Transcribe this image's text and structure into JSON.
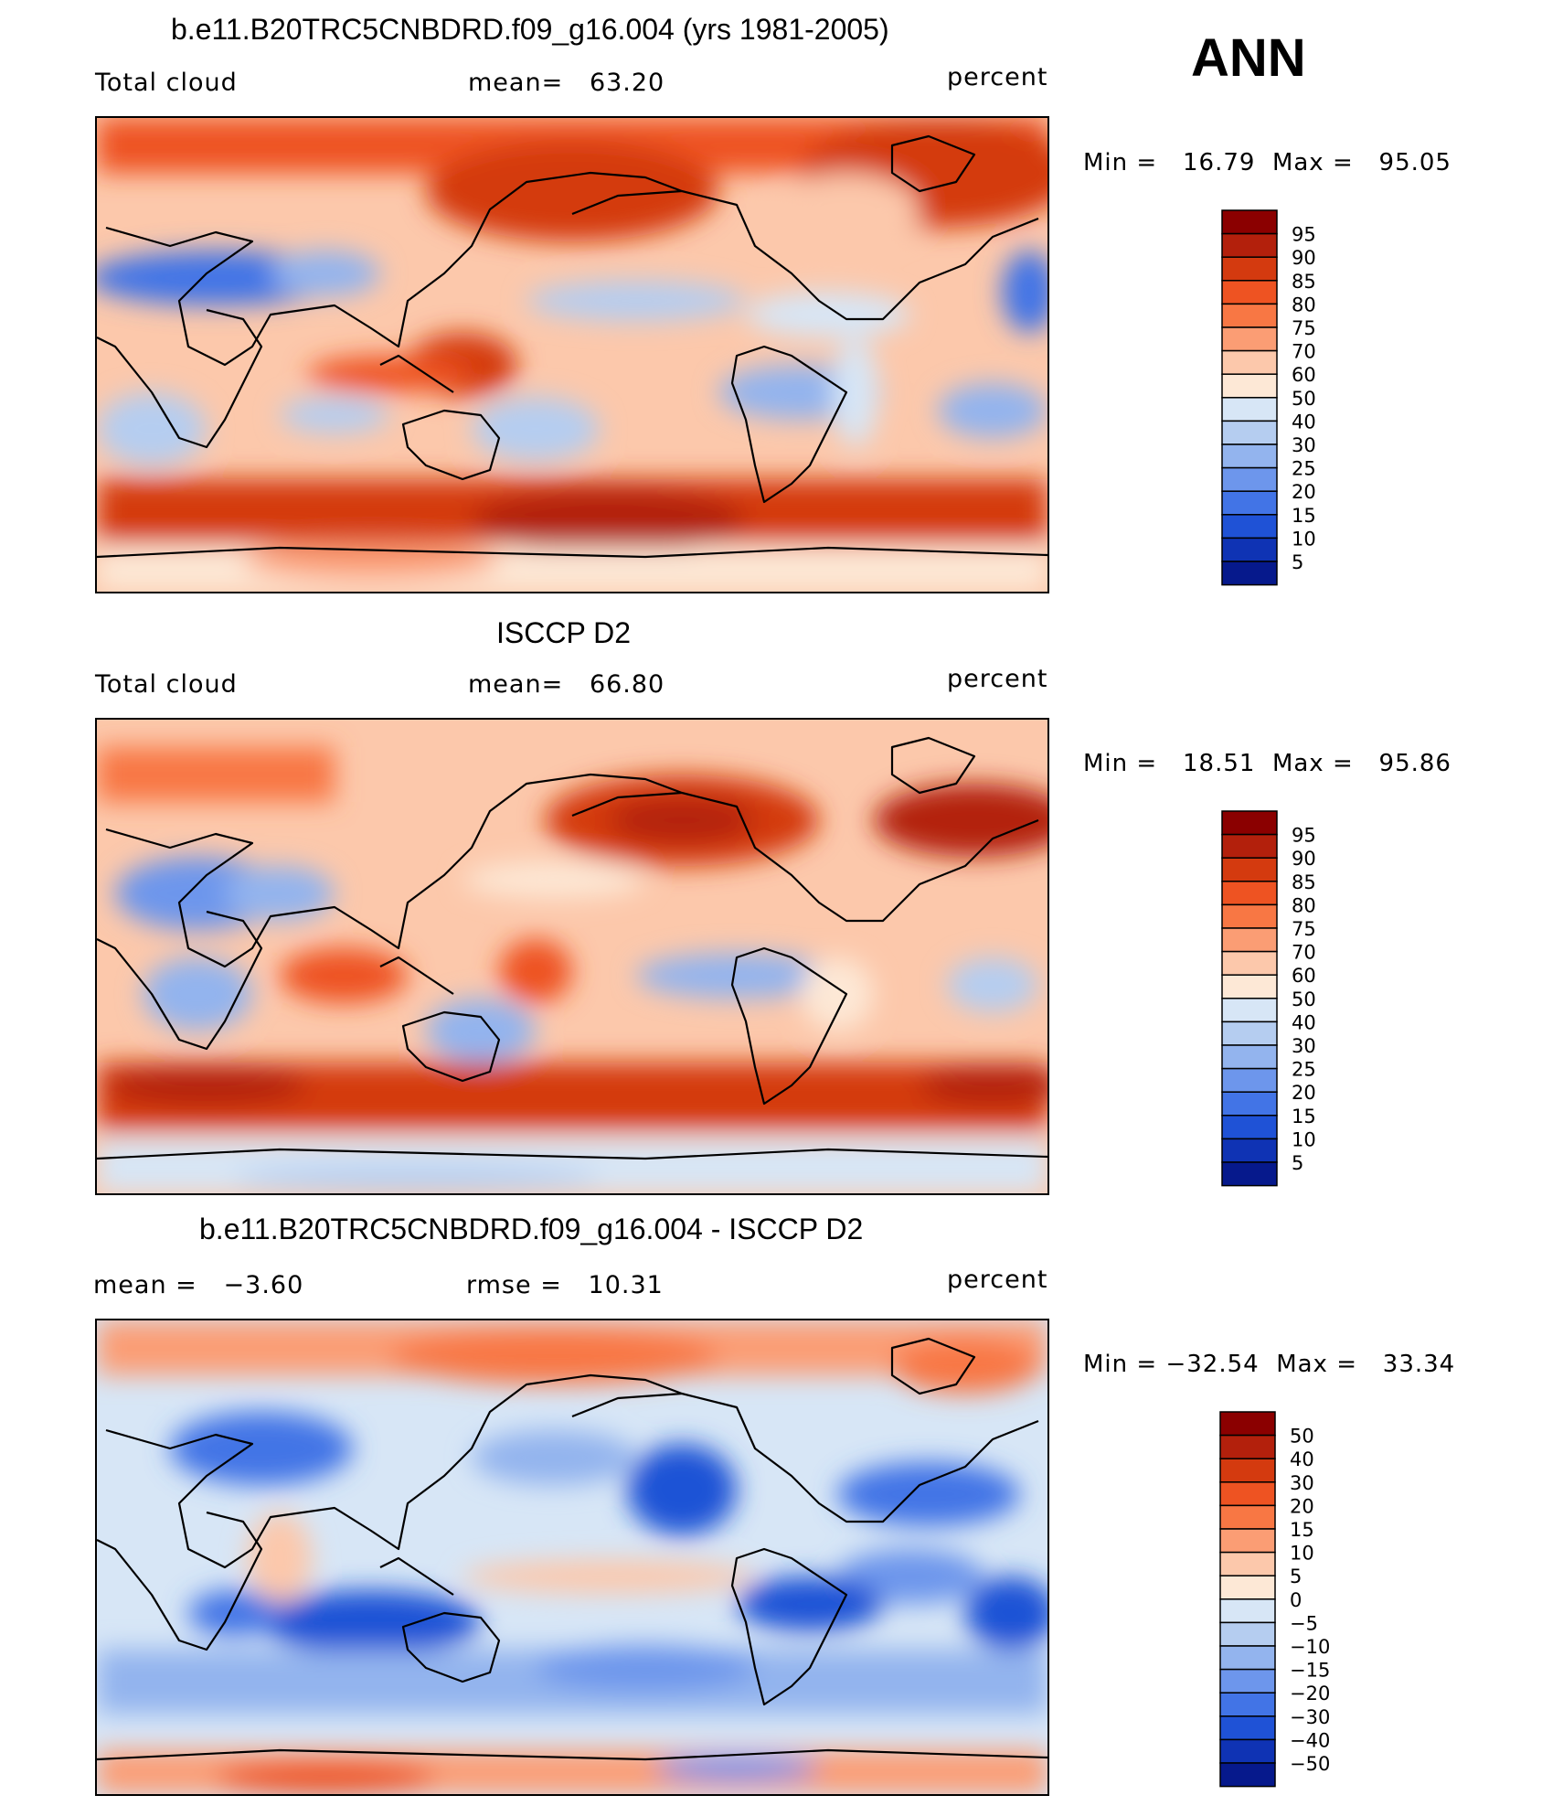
{
  "season": "ANN",
  "panels": [
    {
      "id": "model",
      "title": "b.e11.B20TRC5CNBDRD.f09_g16.004 (yrs 1981-2005)",
      "left_label": "Total cloud",
      "center_label": "mean=   63.20",
      "right_label": "percent",
      "min_max": "Min =   16.79  Max =   95.05",
      "colorbar_levels": [
        "95",
        "90",
        "85",
        "80",
        "75",
        "70",
        "60",
        "50",
        "40",
        "30",
        "25",
        "20",
        "15",
        "10",
        "5"
      ]
    },
    {
      "id": "obs",
      "title": "ISCCP D2",
      "left_label": "Total cloud",
      "center_label": "mean=   66.80",
      "right_label": "percent",
      "min_max": "Min =   18.51  Max =   95.86",
      "colorbar_levels": [
        "95",
        "90",
        "85",
        "80",
        "75",
        "70",
        "60",
        "50",
        "40",
        "30",
        "25",
        "20",
        "15",
        "10",
        "5"
      ]
    },
    {
      "id": "diff",
      "title": "b.e11.B20TRC5CNBDRD.f09_g16.004 - ISCCP D2",
      "left_label": "mean =   −3.60",
      "center_label": "rmse =   10.31",
      "right_label": "percent",
      "min_max": "Min = −32.54  Max =   33.34",
      "colorbar_levels": [
        "50",
        "40",
        "30",
        "20",
        "15",
        "10",
        "5",
        "0",
        "−5",
        "−10",
        "−15",
        "−20",
        "−30",
        "−40",
        "−50"
      ]
    }
  ],
  "colorbar_colors": [
    "#8b0000",
    "#b3200c",
    "#d43a0f",
    "#ee5322",
    "#f87744",
    "#fb9d74",
    "#fcc8ab",
    "#fde8d6",
    "#d7e6f6",
    "#b5cdf0",
    "#93b4ee",
    "#6d96ec",
    "#4274e6",
    "#1f52d6",
    "#0f33b4",
    "#06198c"
  ],
  "chart_data": [
    {
      "type": "heatmap",
      "title": "b.e11.B20TRC5CNBDRD.f09_g16.004 (yrs 1981-2005)",
      "variable": "Total cloud",
      "units": "percent",
      "mean": 63.2,
      "min": 16.79,
      "max": 95.05,
      "contour_levels": [
        5,
        10,
        15,
        20,
        25,
        30,
        40,
        50,
        60,
        70,
        75,
        80,
        85,
        90,
        95
      ]
    },
    {
      "type": "heatmap",
      "title": "ISCCP D2",
      "variable": "Total cloud",
      "units": "percent",
      "mean": 66.8,
      "min": 18.51,
      "max": 95.86,
      "contour_levels": [
        5,
        10,
        15,
        20,
        25,
        30,
        40,
        50,
        60,
        70,
        75,
        80,
        85,
        90,
        95
      ]
    },
    {
      "type": "heatmap",
      "title": "b.e11.B20TRC5CNBDRD.f09_g16.004 - ISCCP D2",
      "units": "percent",
      "mean": -3.6,
      "rmse": 10.31,
      "min": -32.54,
      "max": 33.34,
      "contour_levels": [
        -50,
        -40,
        -30,
        -20,
        -15,
        -10,
        -5,
        0,
        5,
        10,
        15,
        20,
        30,
        40,
        50
      ]
    }
  ]
}
